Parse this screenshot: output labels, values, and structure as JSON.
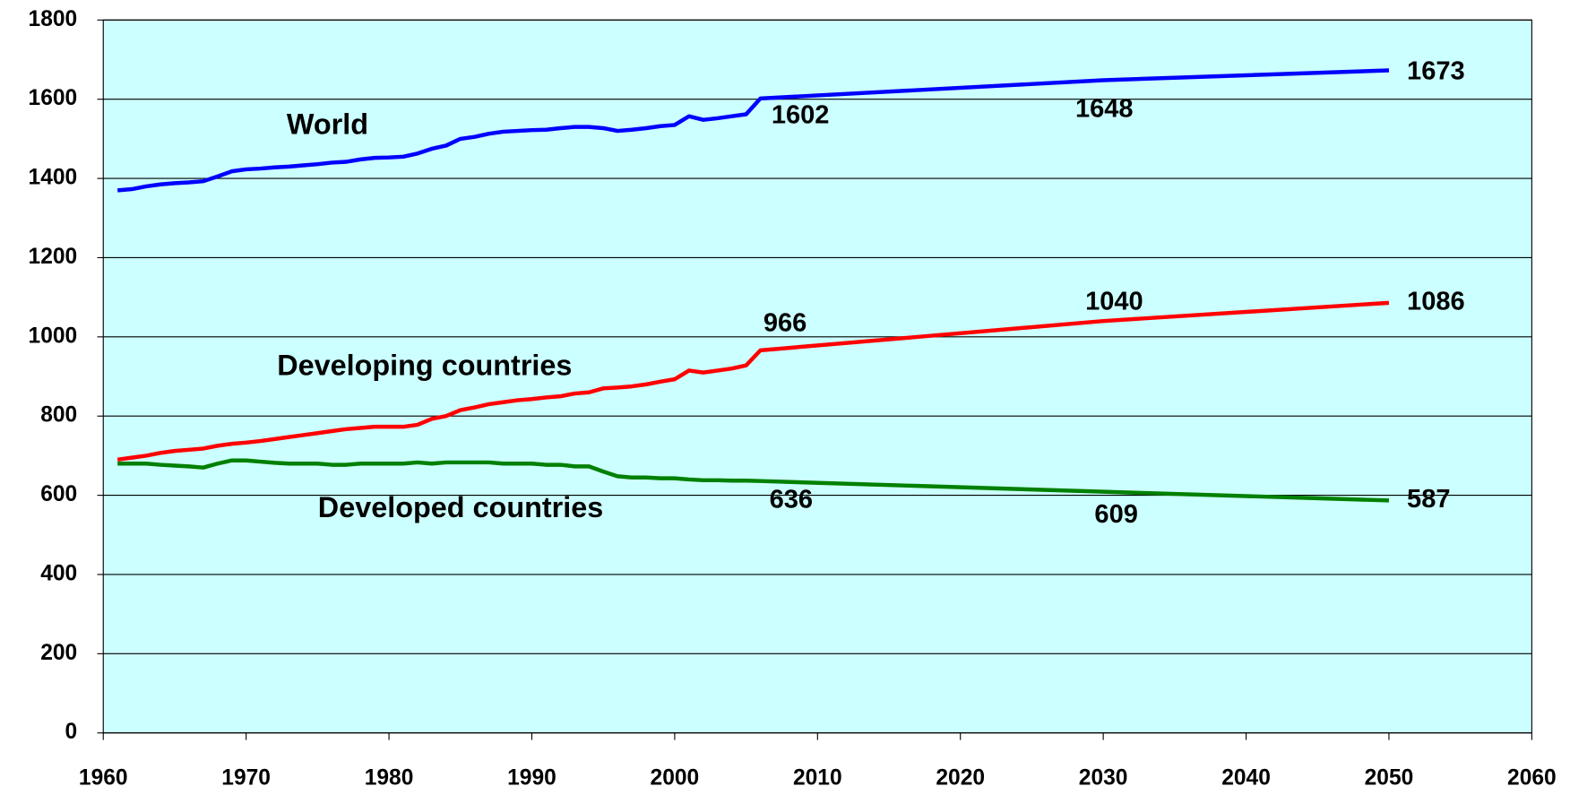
{
  "chart_data": {
    "type": "line",
    "x": [
      1961,
      1962,
      1963,
      1964,
      1965,
      1966,
      1967,
      1968,
      1969,
      1970,
      1971,
      1972,
      1973,
      1974,
      1975,
      1976,
      1977,
      1978,
      1979,
      1980,
      1981,
      1982,
      1983,
      1984,
      1985,
      1986,
      1987,
      1988,
      1989,
      1990,
      1991,
      1992,
      1993,
      1994,
      1995,
      1996,
      1997,
      1998,
      1999,
      2000,
      2001,
      2002,
      2003,
      2004,
      2005,
      2006,
      2030,
      2050
    ],
    "series": [
      {
        "name": "World",
        "color": "#0000ff",
        "values": [
          1370,
          1373,
          1380,
          1385,
          1388,
          1390,
          1393,
          1405,
          1418,
          1423,
          1425,
          1428,
          1430,
          1433,
          1436,
          1440,
          1442,
          1448,
          1452,
          1453,
          1455,
          1463,
          1475,
          1483,
          1500,
          1505,
          1513,
          1518,
          1520,
          1522,
          1523,
          1527,
          1530,
          1530,
          1527,
          1520,
          1523,
          1527,
          1532,
          1535,
          1557,
          1548,
          1552,
          1557,
          1562,
          1602,
          1648,
          1673
        ]
      },
      {
        "name": "Developing countries",
        "color": "#ff0000",
        "values": [
          690,
          695,
          700,
          707,
          712,
          715,
          718,
          725,
          730,
          733,
          737,
          742,
          747,
          752,
          757,
          762,
          767,
          770,
          773,
          773,
          773,
          778,
          793,
          800,
          815,
          822,
          830,
          835,
          840,
          843,
          847,
          850,
          857,
          860,
          870,
          872,
          875,
          880,
          887,
          893,
          915,
          910,
          915,
          920,
          928,
          966,
          1040,
          1086
        ]
      },
      {
        "name": "Developed countries",
        "color": "#008000",
        "values": [
          680,
          680,
          680,
          677,
          675,
          673,
          670,
          680,
          688,
          688,
          685,
          682,
          680,
          680,
          680,
          677,
          677,
          680,
          680,
          680,
          680,
          683,
          680,
          683,
          683,
          683,
          683,
          680,
          680,
          680,
          677,
          677,
          673,
          673,
          660,
          648,
          645,
          645,
          643,
          643,
          640,
          638,
          638,
          637,
          637,
          636,
          609,
          587
        ]
      }
    ],
    "xlim": [
      1960,
      2060
    ],
    "xticks": [
      1960,
      1970,
      1980,
      1990,
      2000,
      2010,
      2020,
      2030,
      2040,
      2050,
      2060
    ],
    "ylim": [
      0,
      1800
    ],
    "yticks": [
      0,
      200,
      400,
      600,
      800,
      1000,
      1200,
      1400,
      1600,
      1800
    ],
    "grid": true,
    "background": "#ccffff"
  }
}
